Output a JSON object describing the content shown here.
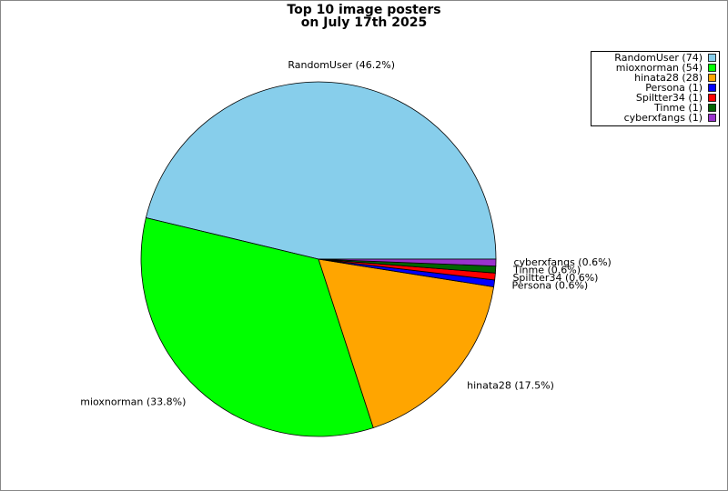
{
  "chart_data": {
    "type": "pie",
    "title": [
      "Top 10 image posters",
      "on July 17th 2025"
    ],
    "labels": [
      "RandomUser (74)",
      "mioxnorman (54)",
      "hinata28 (28)",
      "Persona (1)",
      "Spiltter34 (1)",
      "Tinme (1)",
      "cyberxfangs (1)"
    ],
    "values": [
      74,
      54,
      28,
      1,
      1,
      1,
      1
    ],
    "value_labels": [
      "RandomUser (46.2%)",
      "mioxnorman (33.8%)",
      "hinata28 (17.5%)",
      "Persona (0.6%)",
      "Spiltter34 (0.6%)",
      "Tinme (0.6%)",
      "cyberxfangs (0.6%)"
    ],
    "colors": [
      "#87ceeb",
      "#00ff00",
      "#ffa500",
      "#0000ff",
      "#ff0000",
      "#006400",
      "#9932cc"
    ],
    "legend": "upper right"
  }
}
